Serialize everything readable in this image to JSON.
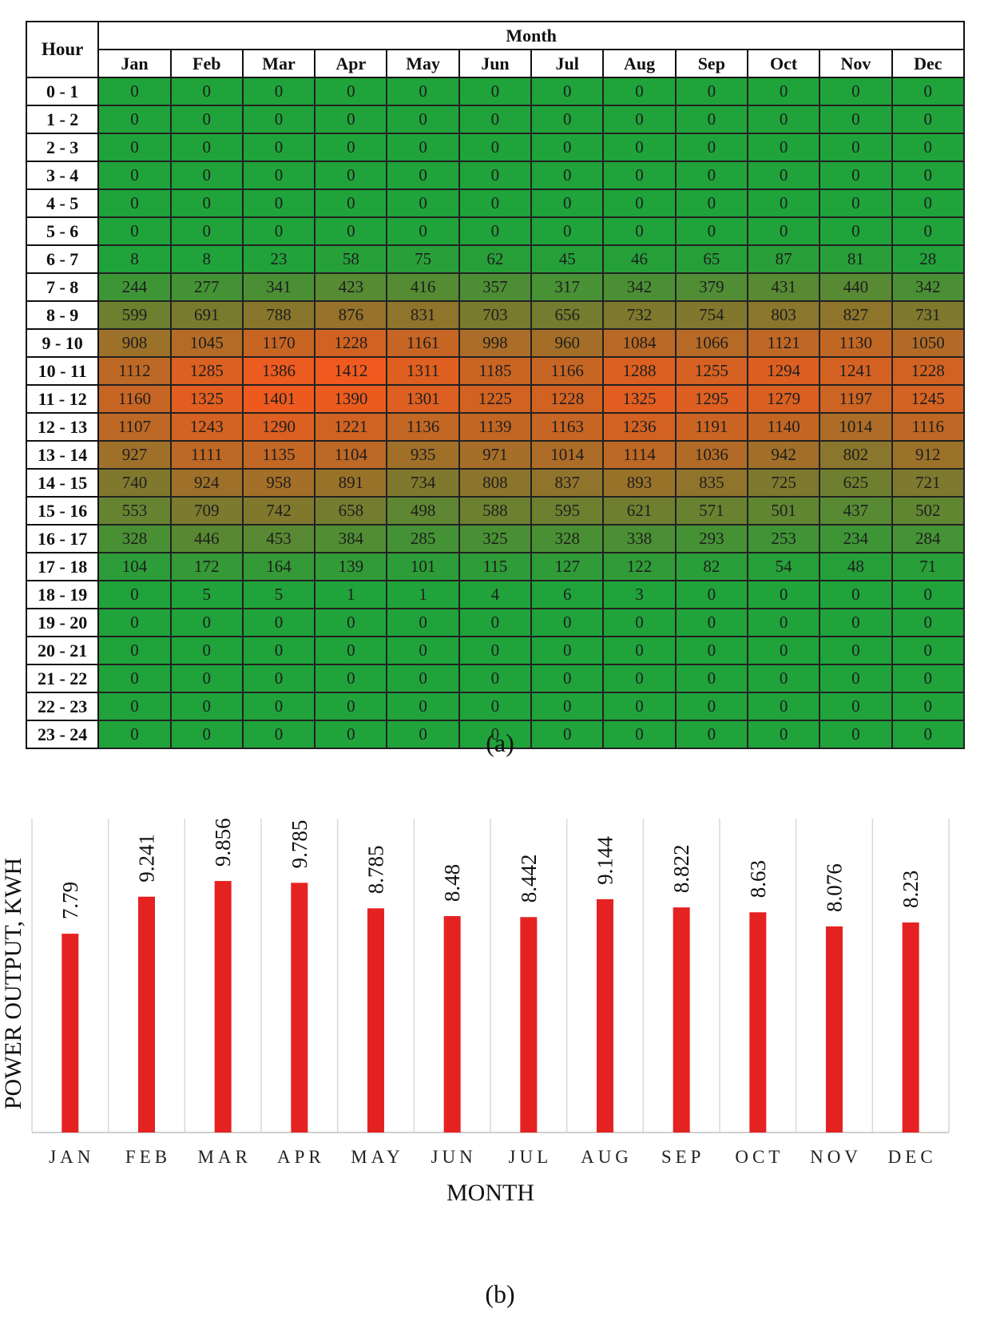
{
  "chart_data": [
    {
      "type": "heatmap",
      "row_header": "Hour",
      "column_group_header": "Month",
      "columns": [
        "Jan",
        "Feb",
        "Mar",
        "Apr",
        "May",
        "Jun",
        "Jul",
        "Aug",
        "Sep",
        "Oct",
        "Nov",
        "Dec"
      ],
      "rows": [
        "0 - 1",
        "1 - 2",
        "2 - 3",
        "3 - 4",
        "4 - 5",
        "5 - 6",
        "6 - 7",
        "7 - 8",
        "8 - 9",
        "9 - 10",
        "10 - 11",
        "11 - 12",
        "12 - 13",
        "13 - 14",
        "14 - 15",
        "15 - 16",
        "16 - 17",
        "17 - 18",
        "18 - 19",
        "19 - 20",
        "20 - 21",
        "21 - 22",
        "22 - 23",
        "23 - 24"
      ],
      "values": [
        [
          0,
          0,
          0,
          0,
          0,
          0,
          0,
          0,
          0,
          0,
          0,
          0
        ],
        [
          0,
          0,
          0,
          0,
          0,
          0,
          0,
          0,
          0,
          0,
          0,
          0
        ],
        [
          0,
          0,
          0,
          0,
          0,
          0,
          0,
          0,
          0,
          0,
          0,
          0
        ],
        [
          0,
          0,
          0,
          0,
          0,
          0,
          0,
          0,
          0,
          0,
          0,
          0
        ],
        [
          0,
          0,
          0,
          0,
          0,
          0,
          0,
          0,
          0,
          0,
          0,
          0
        ],
        [
          0,
          0,
          0,
          0,
          0,
          0,
          0,
          0,
          0,
          0,
          0,
          0
        ],
        [
          8,
          8,
          23,
          58,
          75,
          62,
          45,
          46,
          65,
          87,
          81,
          28
        ],
        [
          244,
          277,
          341,
          423,
          416,
          357,
          317,
          342,
          379,
          431,
          440,
          342
        ],
        [
          599,
          691,
          788,
          876,
          831,
          703,
          656,
          732,
          754,
          803,
          827,
          731
        ],
        [
          908,
          1045,
          1170,
          1228,
          1161,
          998,
          960,
          1084,
          1066,
          1121,
          1130,
          1050
        ],
        [
          1112,
          1285,
          1386,
          1412,
          1311,
          1185,
          1166,
          1288,
          1255,
          1294,
          1241,
          1228
        ],
        [
          1160,
          1325,
          1401,
          1390,
          1301,
          1225,
          1228,
          1325,
          1295,
          1279,
          1197,
          1245
        ],
        [
          1107,
          1243,
          1290,
          1221,
          1136,
          1139,
          1163,
          1236,
          1191,
          1140,
          1014,
          1116
        ],
        [
          927,
          1111,
          1135,
          1104,
          935,
          971,
          1014,
          1114,
          1036,
          942,
          802,
          912
        ],
        [
          740,
          924,
          958,
          891,
          734,
          808,
          837,
          893,
          835,
          725,
          625,
          721
        ],
        [
          553,
          709,
          742,
          658,
          498,
          588,
          595,
          621,
          571,
          501,
          437,
          502
        ],
        [
          328,
          446,
          453,
          384,
          285,
          325,
          328,
          338,
          293,
          253,
          234,
          284
        ],
        [
          104,
          172,
          164,
          139,
          101,
          115,
          127,
          122,
          82,
          54,
          48,
          71
        ],
        [
          0,
          5,
          5,
          1,
          1,
          4,
          6,
          3,
          0,
          0,
          0,
          0
        ],
        [
          0,
          0,
          0,
          0,
          0,
          0,
          0,
          0,
          0,
          0,
          0,
          0
        ],
        [
          0,
          0,
          0,
          0,
          0,
          0,
          0,
          0,
          0,
          0,
          0,
          0
        ],
        [
          0,
          0,
          0,
          0,
          0,
          0,
          0,
          0,
          0,
          0,
          0,
          0
        ],
        [
          0,
          0,
          0,
          0,
          0,
          0,
          0,
          0,
          0,
          0,
          0,
          0
        ],
        [
          0,
          0,
          0,
          0,
          0,
          0,
          0,
          0,
          0,
          0,
          0,
          0
        ]
      ],
      "color_low": "#1fa33a",
      "color_high": "#f05a1e",
      "caption": "(a)"
    },
    {
      "type": "bar",
      "categories": [
        "JAN",
        "FEB",
        "MAR",
        "APR",
        "MAY",
        "JUN",
        "JUL",
        "AUG",
        "SEP",
        "OCT",
        "NOV",
        "DEC"
      ],
      "values": [
        7.79,
        9.241,
        9.856,
        9.785,
        8.785,
        8.48,
        8.442,
        9.144,
        8.822,
        8.63,
        8.076,
        8.23
      ],
      "value_labels": [
        "7.79",
        "9.241",
        "9.856",
        "9.785",
        "8.785",
        "8.48",
        "8.442",
        "9.144",
        "8.822",
        "8.63",
        "8.076",
        "8.23"
      ],
      "xlabel": "MONTH",
      "ylabel": "POWER OUTPUT, KWH",
      "ylim": [
        0,
        12.3
      ],
      "bar_color": "#e52222",
      "grid": "vertical category separators",
      "caption": "(b)"
    }
  ]
}
